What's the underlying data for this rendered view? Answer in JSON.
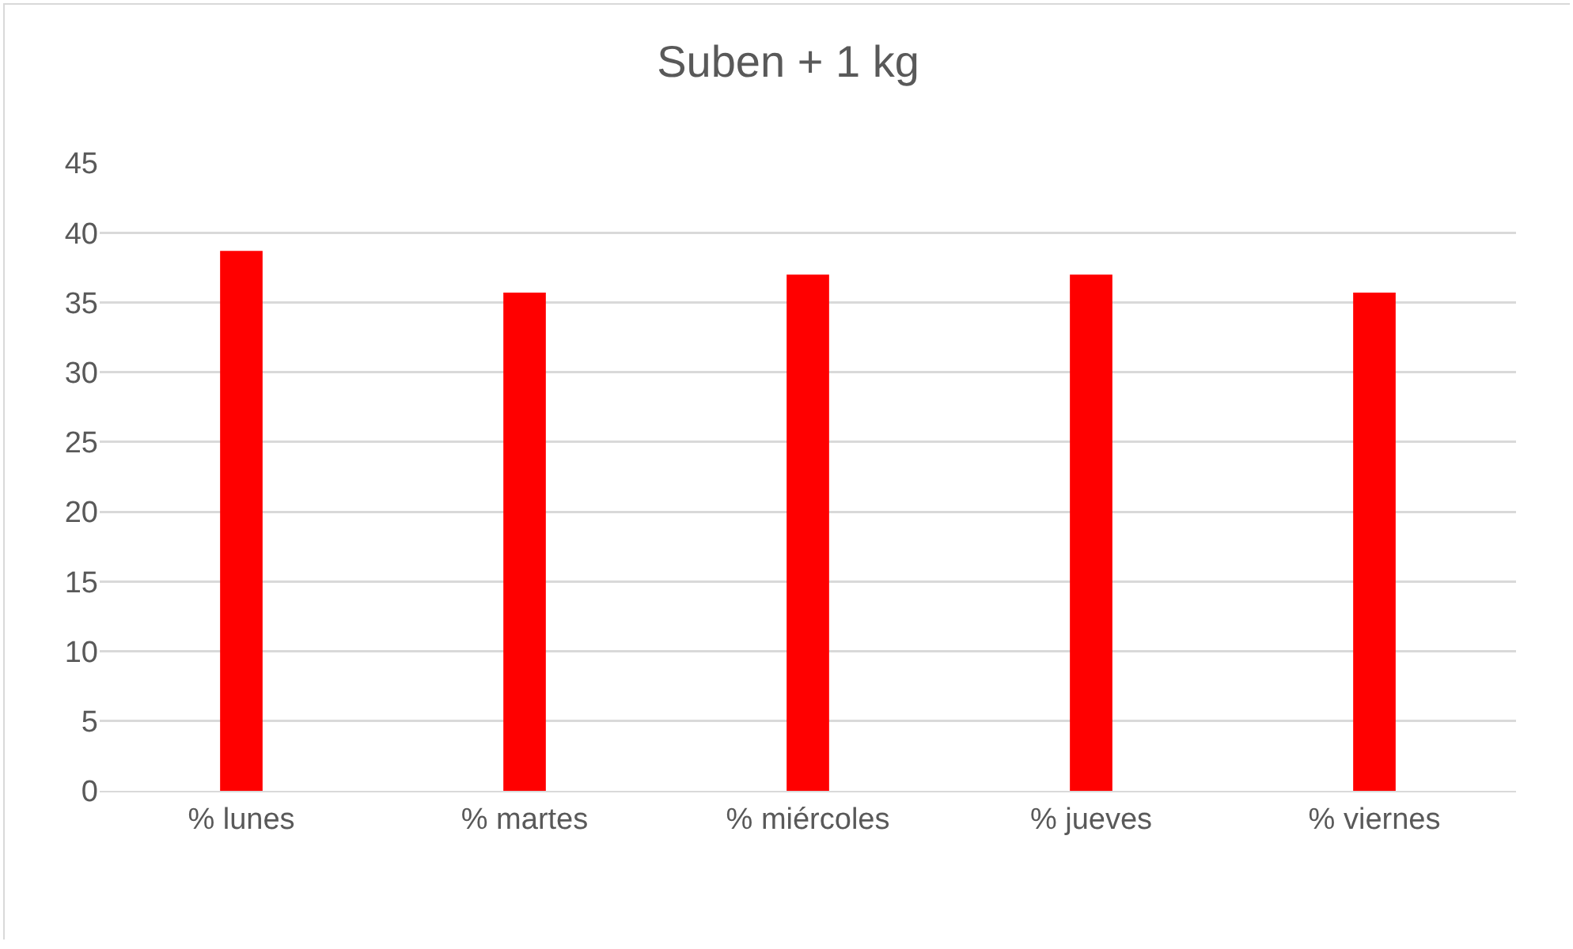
{
  "chart_data": {
    "type": "bar",
    "title": "Suben + 1 kg",
    "categories": [
      "% lunes",
      "% martes",
      "% miércoles",
      "% jueves",
      "% viernes"
    ],
    "values": [
      38.7,
      35.7,
      37.0,
      37.0,
      35.7
    ],
    "color": "#ff0000",
    "ylim": [
      0,
      45
    ],
    "yticks": [
      0,
      5,
      10,
      15,
      20,
      25,
      30,
      35,
      40,
      45
    ],
    "grid": "y"
  }
}
